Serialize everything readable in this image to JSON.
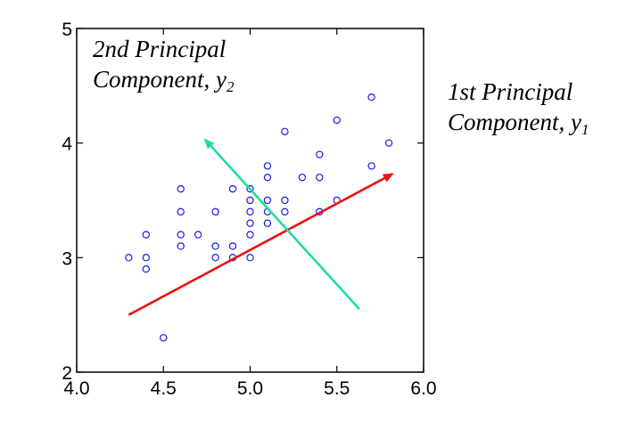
{
  "chart_data": {
    "type": "scatter",
    "title": "",
    "xlabel": "",
    "ylabel": "",
    "xlim": [
      4.0,
      6.0
    ],
    "ylim": [
      2.0,
      5.0
    ],
    "x_ticks": [
      "4.0",
      "4.5",
      "5.0",
      "5.5",
      "6.0"
    ],
    "y_ticks": [
      "2",
      "3",
      "4",
      "5"
    ],
    "grid": false,
    "points": [
      [
        4.3,
        3.0
      ],
      [
        4.4,
        3.2
      ],
      [
        4.4,
        3.0
      ],
      [
        4.4,
        2.9
      ],
      [
        4.5,
        2.3
      ],
      [
        4.6,
        3.6
      ],
      [
        4.6,
        3.4
      ],
      [
        4.6,
        3.2
      ],
      [
        4.6,
        3.1
      ],
      [
        4.7,
        3.2
      ],
      [
        4.8,
        3.4
      ],
      [
        4.8,
        3.1
      ],
      [
        4.8,
        3.0
      ],
      [
        4.9,
        3.6
      ],
      [
        4.9,
        3.1
      ],
      [
        4.9,
        3.0
      ],
      [
        5.0,
        3.6
      ],
      [
        5.0,
        3.5
      ],
      [
        5.0,
        3.4
      ],
      [
        5.0,
        3.3
      ],
      [
        5.0,
        3.2
      ],
      [
        5.0,
        3.0
      ],
      [
        5.1,
        3.8
      ],
      [
        5.1,
        3.7
      ],
      [
        5.1,
        3.5
      ],
      [
        5.1,
        3.4
      ],
      [
        5.1,
        3.3
      ],
      [
        5.2,
        4.1
      ],
      [
        5.2,
        3.5
      ],
      [
        5.2,
        3.4
      ],
      [
        5.3,
        3.7
      ],
      [
        5.4,
        3.9
      ],
      [
        5.4,
        3.7
      ],
      [
        5.4,
        3.4
      ],
      [
        5.5,
        4.2
      ],
      [
        5.5,
        3.5
      ],
      [
        5.7,
        4.4
      ],
      [
        5.7,
        3.8
      ],
      [
        5.8,
        4.0
      ]
    ],
    "pc1_arrow": {
      "from": [
        4.3,
        2.5
      ],
      "to": [
        5.82,
        3.73
      ],
      "color": "#ee1111"
    },
    "pc2_arrow": {
      "from": [
        5.63,
        2.55
      ],
      "to": [
        4.74,
        4.03
      ],
      "color": "#22dd99"
    },
    "marker_color": "#1a1ae6",
    "annotations": {
      "pc2_line1": "2nd Principal",
      "pc2_line2": "Component, y",
      "pc2_sub": "2",
      "pc1_line1": "1st Principal",
      "pc1_line2": "Component, y",
      "pc1_sub": "1"
    }
  }
}
